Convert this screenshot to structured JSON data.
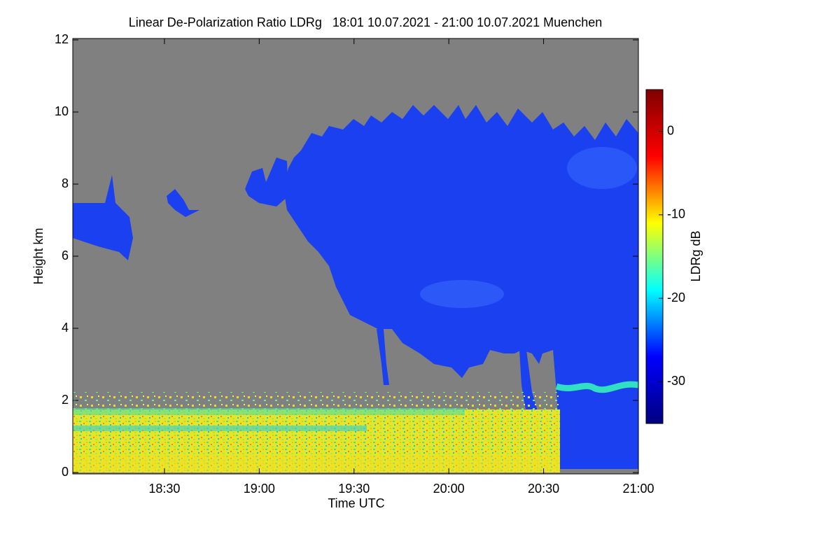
{
  "chart_data": {
    "type": "heatmap",
    "title": "Linear De-Polarization Ratio LDRg   18:01 10.07.2021 - 21:00 10.07.2021 Muenchen",
    "x_label": "Time UTC",
    "y_label": "Height km",
    "colorbar_label": "LDRg dB",
    "xlim": [
      1081,
      1260
    ],
    "xticks": [
      {
        "value": 1110,
        "label": "18:30"
      },
      {
        "value": 1140,
        "label": "19:00"
      },
      {
        "value": 1170,
        "label": "19:30"
      },
      {
        "value": 1200,
        "label": "20:00"
      },
      {
        "value": 1230,
        "label": "20:30"
      },
      {
        "value": 1260,
        "label": "21:00"
      }
    ],
    "ylim": [
      0,
      12
    ],
    "yticks": [
      0,
      2,
      4,
      6,
      8,
      10,
      12
    ],
    "clim": [
      -35,
      5
    ],
    "cticks": [
      0,
      -10,
      -20,
      -30
    ],
    "colorscale": [
      "#00007f",
      "#0000ff",
      "#00ffff",
      "#ffff00",
      "#ff0000",
      "#7f0000"
    ],
    "background": "#808080"
  }
}
